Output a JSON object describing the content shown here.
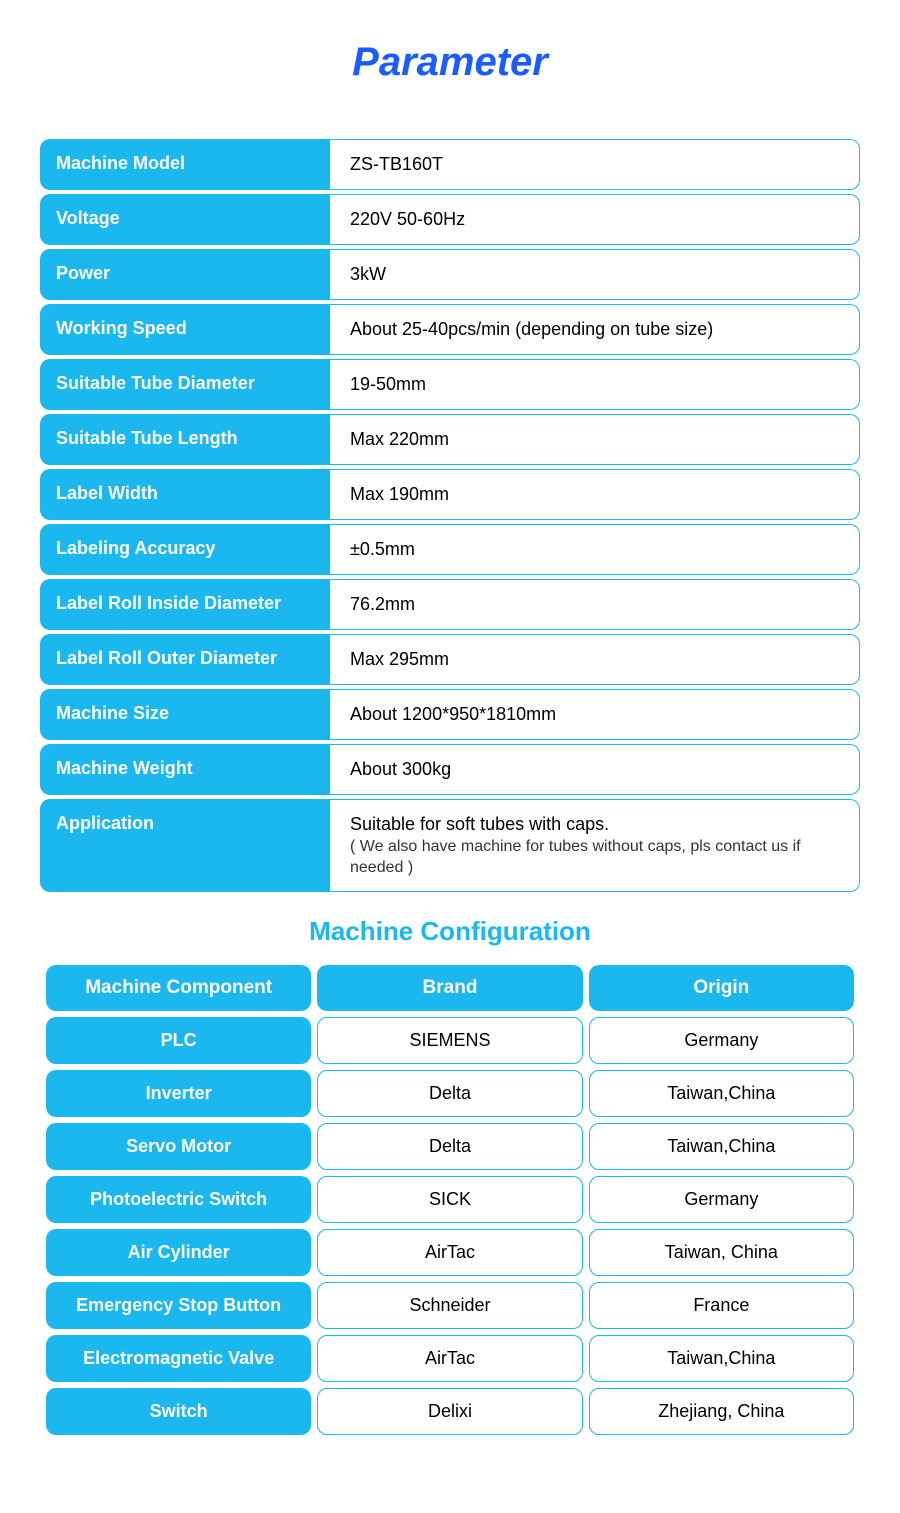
{
  "title": "Parameter",
  "parameters": {
    "rows": [
      {
        "label": "Machine Model",
        "value": "ZS-TB160T"
      },
      {
        "label": "Voltage",
        "value": "220V 50-60Hz"
      },
      {
        "label": "Power",
        "value": "3kW"
      },
      {
        "label": "Working Speed",
        "value": "About 25-40pcs/min (depending on tube size)"
      },
      {
        "label": "Suitable Tube Diameter",
        "value": "19-50mm"
      },
      {
        "label": "Suitable Tube Length",
        "value": "Max 220mm"
      },
      {
        "label": "Label Width",
        "value": "Max 190mm"
      },
      {
        "label": "Labeling Accuracy",
        "value": "±0.5mm"
      },
      {
        "label": "Label Roll Inside Diameter",
        "value": "76.2mm"
      },
      {
        "label": "Label Roll Outer Diameter",
        "value": "Max 295mm"
      },
      {
        "label": "Machine Size",
        "value": "About 1200*950*1810mm"
      },
      {
        "label": "Machine Weight",
        "value": "About 300kg"
      },
      {
        "label": "Application",
        "value": "Suitable for soft tubes with caps.",
        "sub": "( We also have machine for tubes without caps, pls contact us if needed )"
      }
    ]
  },
  "config": {
    "title": "Machine Configuration",
    "headers": {
      "component": "Machine Component",
      "brand": "Brand",
      "origin": "Origin"
    },
    "rows": [
      {
        "component": "PLC",
        "brand": "SIEMENS",
        "origin": "Germany"
      },
      {
        "component": "Inverter",
        "brand": "Delta",
        "origin": "Taiwan,China"
      },
      {
        "component": "Servo Motor",
        "brand": "Delta",
        "origin": "Taiwan,China"
      },
      {
        "component": "Photoelectric Switch",
        "brand": "SICK",
        "origin": "Germany"
      },
      {
        "component": "Air Cylinder",
        "brand": "AirTac",
        "origin": "Taiwan, China"
      },
      {
        "component": "Emergency Stop Button",
        "brand": "Schneider",
        "origin": "France"
      },
      {
        "component": "Electromagnetic Valve",
        "brand": "AirTac",
        "origin": "Taiwan,China"
      },
      {
        "component": "Switch",
        "brand": "Delixi",
        "origin": "Zhejiang, China"
      }
    ]
  },
  "colors": {
    "accent": "#1bb8f0",
    "title": "#1a5cff",
    "text": "#000000",
    "bg": "#ffffff"
  }
}
